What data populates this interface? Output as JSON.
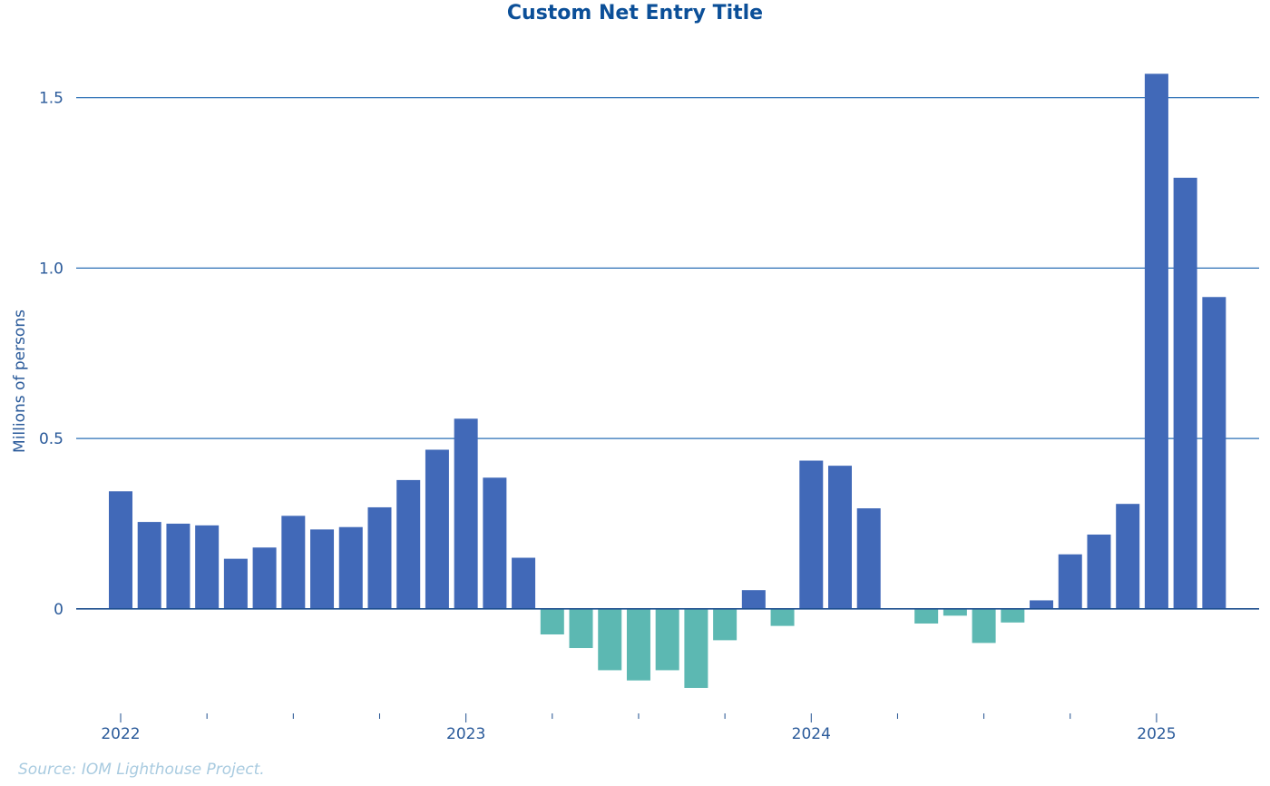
{
  "chart_data": {
    "type": "bar",
    "title": "Custom Net Entry Title",
    "xlabel": "",
    "ylabel": "Millions of persons",
    "ylim": [
      -0.32,
      1.68
    ],
    "yticks": [
      0,
      0.5,
      1.0,
      1.5
    ],
    "ytick_labels": [
      "0",
      "0.5",
      "1.0",
      "1.5"
    ],
    "year_labels": [
      "2022",
      "2023",
      "2024",
      "2025"
    ],
    "grid": true,
    "legend": "none",
    "colors": {
      "positive": "#4169b8",
      "negative": "#5cb8b2",
      "axis": "#1f4f8f",
      "grid": "#2a6fb5",
      "text": "#2a5a9a"
    },
    "series": [
      {
        "x": [
          "2022-01",
          "2022-02",
          "2022-03",
          "2022-04",
          "2022-05",
          "2022-06",
          "2022-07",
          "2022-08",
          "2022-09",
          "2022-10",
          "2022-11",
          "2022-12",
          "2023-01",
          "2023-02",
          "2023-03",
          "2023-04",
          "2023-05",
          "2023-06",
          "2023-07",
          "2023-08",
          "2023-09",
          "2023-10",
          "2023-11",
          "2023-12",
          "2024-01",
          "2024-02",
          "2024-03",
          "2024-04",
          "2024-05",
          "2024-06",
          "2024-07",
          "2024-08",
          "2024-09",
          "2024-10",
          "2024-11",
          "2024-12",
          "2025-01",
          "2025-02",
          "2025-03"
        ],
        "values": [
          0.345,
          0.255,
          0.25,
          0.245,
          0.147,
          0.18,
          0.273,
          0.233,
          0.24,
          0.298,
          0.378,
          0.467,
          0.558,
          0.385,
          0.15,
          -0.075,
          -0.115,
          -0.18,
          -0.21,
          -0.18,
          -0.232,
          -0.092,
          0.055,
          -0.05,
          0.435,
          0.42,
          0.295,
          0.0,
          -0.043,
          -0.02,
          -0.1,
          -0.04,
          0.025,
          0.16,
          0.218,
          0.308,
          1.57,
          1.265,
          0.915
        ]
      }
    ]
  },
  "source": "Source: IOM Lighthouse Project."
}
